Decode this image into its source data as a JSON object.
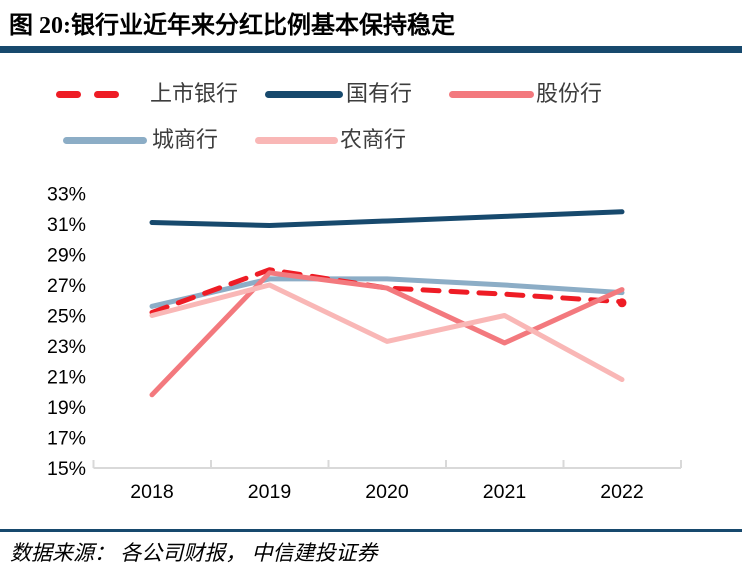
{
  "header": {
    "title": "图 20:银行业近年来分红比例基本保持稳定"
  },
  "footer": {
    "source": "数据来源： 各公司财报， 中信建投证券"
  },
  "colors": {
    "accent_bar": "#17496d",
    "axis_line": "#d9d9d9",
    "tick_label": "#000000",
    "legend_text": "#3d3d3d"
  },
  "chart_data": {
    "type": "line",
    "title": "银行业近年来分红比例基本保持稳定",
    "categories": [
      "2018",
      "2019",
      "2020",
      "2021",
      "2022"
    ],
    "y_ticks": [
      "33%",
      "31%",
      "29%",
      "27%",
      "25%",
      "23%",
      "21%",
      "19%",
      "17%",
      "15%"
    ],
    "ylim": [
      15,
      33
    ],
    "y_step": 2,
    "grid": false,
    "legend_position": "top-left",
    "legend_rows": [
      [
        "上市银行",
        "国有行",
        "股份行"
      ],
      [
        "城商行",
        "农商行"
      ]
    ],
    "series": [
      {
        "name": "上市银行",
        "id": "listed-banks",
        "color": "#ee1c25",
        "style": "dashed",
        "values": [
          25.2,
          28.0,
          26.8,
          26.4,
          25.9
        ]
      },
      {
        "name": "国有行",
        "id": "state-owned-banks",
        "color": "#17496d",
        "style": "solid",
        "values": [
          31.1,
          30.9,
          31.2,
          31.5,
          31.8
        ]
      },
      {
        "name": "股份行",
        "id": "joint-stock-banks",
        "color": "#f3797e",
        "style": "solid",
        "values": [
          19.8,
          27.8,
          26.8,
          23.2,
          26.7
        ]
      },
      {
        "name": "城商行",
        "id": "city-commercial-banks",
        "color": "#8cadc6",
        "style": "solid",
        "values": [
          25.6,
          27.4,
          27.4,
          27.0,
          26.5
        ]
      },
      {
        "name": "农商行",
        "id": "rural-commercial-banks",
        "color": "#f9b7b6",
        "style": "solid",
        "values": [
          25.0,
          27.0,
          23.3,
          25.0,
          20.8
        ]
      }
    ]
  }
}
